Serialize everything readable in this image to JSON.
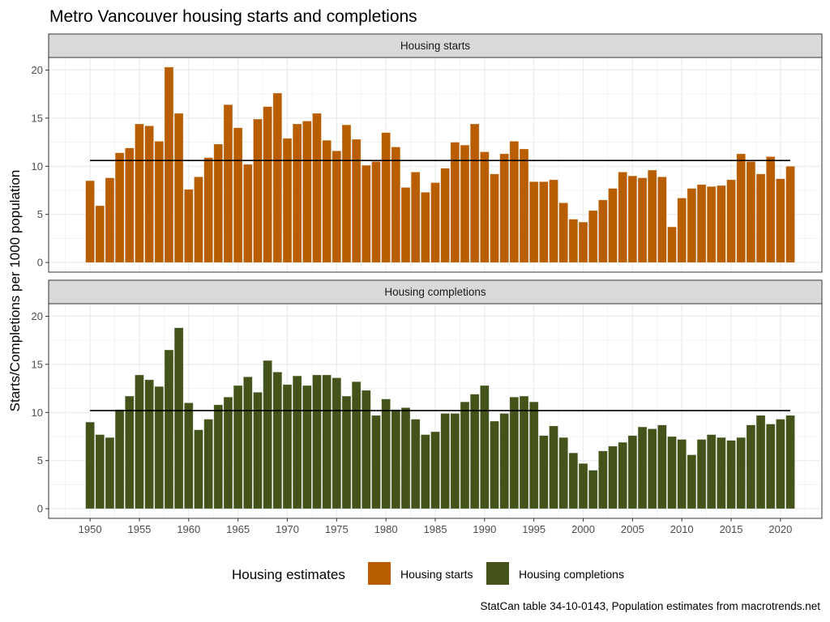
{
  "chart_data": {
    "type": "bar",
    "title": "Metro Vancouver housing starts and completions",
    "ylabel": "Starts/Completions per 1000 population",
    "xlabel": "",
    "ylim": [
      0,
      21.3
    ],
    "yticks": [
      0,
      5,
      10,
      15,
      20
    ],
    "xticks": [
      1950,
      1955,
      1960,
      1965,
      1970,
      1975,
      1980,
      1985,
      1990,
      1995,
      2000,
      2005,
      2010,
      2015,
      2020
    ],
    "xlim": [
      1945.8,
      2024.2
    ],
    "grid": true,
    "x": [
      1950,
      1951,
      1952,
      1953,
      1954,
      1955,
      1956,
      1957,
      1958,
      1959,
      1960,
      1961,
      1962,
      1963,
      1964,
      1965,
      1966,
      1967,
      1968,
      1969,
      1970,
      1971,
      1972,
      1973,
      1974,
      1975,
      1976,
      1977,
      1978,
      1979,
      1980,
      1981,
      1982,
      1983,
      1984,
      1985,
      1986,
      1987,
      1988,
      1989,
      1990,
      1991,
      1992,
      1993,
      1994,
      1995,
      1996,
      1997,
      1998,
      1999,
      2000,
      2001,
      2002,
      2003,
      2004,
      2005,
      2006,
      2007,
      2008,
      2009,
      2010,
      2011,
      2012,
      2013,
      2014,
      2015,
      2016,
      2017,
      2018,
      2019,
      2020,
      2021
    ],
    "panels": [
      {
        "name": "Housing starts",
        "color": "#b95e00",
        "mean_line": 10.6,
        "values": [
          8.5,
          5.9,
          8.8,
          11.4,
          11.9,
          14.4,
          14.2,
          12.6,
          20.3,
          15.5,
          7.6,
          8.9,
          10.9,
          12.3,
          16.4,
          14.0,
          10.2,
          14.9,
          16.2,
          17.6,
          12.9,
          14.4,
          14.7,
          15.5,
          12.7,
          11.6,
          14.3,
          12.8,
          10.1,
          10.5,
          13.5,
          12.0,
          7.8,
          9.4,
          7.3,
          8.3,
          9.8,
          12.5,
          12.2,
          14.4,
          11.5,
          9.2,
          11.3,
          12.6,
          11.8,
          8.4,
          8.4,
          8.6,
          6.2,
          4.5,
          4.2,
          5.4,
          6.5,
          7.7,
          9.4,
          9.0,
          8.8,
          9.6,
          8.9,
          3.7,
          6.7,
          7.7,
          8.1,
          7.9,
          8.0,
          8.6,
          11.3,
          10.5,
          9.2,
          11.0,
          8.7,
          10.0
        ]
      },
      {
        "name": "Housing completions",
        "color": "#43531a",
        "mean_line": 10.2,
        "values": [
          9.0,
          7.7,
          7.4,
          10.3,
          11.7,
          13.9,
          13.4,
          12.7,
          16.5,
          18.8,
          11.0,
          8.2,
          9.3,
          10.8,
          11.6,
          12.8,
          13.7,
          12.1,
          15.4,
          14.2,
          12.9,
          13.8,
          12.8,
          13.9,
          13.9,
          13.6,
          11.7,
          13.2,
          12.3,
          9.7,
          11.4,
          10.3,
          10.5,
          9.3,
          7.7,
          8.0,
          9.9,
          9.9,
          11.1,
          11.9,
          12.8,
          9.1,
          9.9,
          11.6,
          11.7,
          11.1,
          7.6,
          8.6,
          7.4,
          5.8,
          4.7,
          4.0,
          6.0,
          6.5,
          6.9,
          7.6,
          8.5,
          8.3,
          8.7,
          7.5,
          7.2,
          5.6,
          7.2,
          7.7,
          7.4,
          7.1,
          7.4,
          8.7,
          9.7,
          8.8,
          9.3,
          9.7
        ]
      }
    ],
    "legend": {
      "title": "Housing estimates",
      "position": "bottom",
      "entries": [
        {
          "label": "Housing starts",
          "color": "#b95e00"
        },
        {
          "label": "Housing completions",
          "color": "#43531a"
        }
      ]
    },
    "caption": "StatCan table 34-10-0143, Population estimates from macrotrends.net"
  }
}
